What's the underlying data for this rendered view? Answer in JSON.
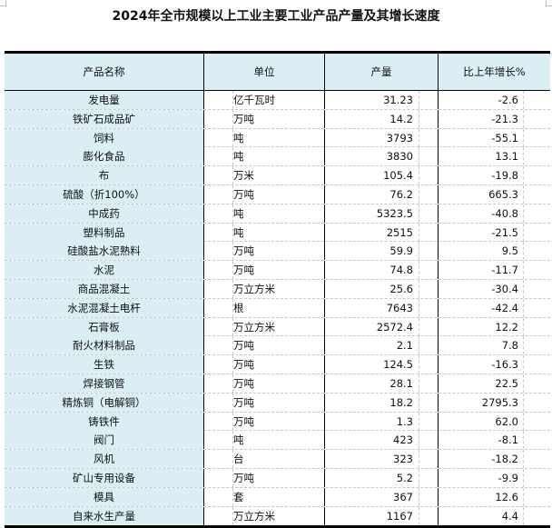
{
  "title": "2024年全市规模以上工业主要工业产品产量及其增长速度",
  "header": {
    "name": "产品名称",
    "unit": "单位",
    "output": "产量",
    "growth": "比上年增长%"
  },
  "rows": [
    {
      "name": "发电量",
      "unit": "亿千瓦时",
      "output": "31.23",
      "growth": "-2.6"
    },
    {
      "name": "铁矿石成品矿",
      "unit": "万吨",
      "output": "14.2",
      "growth": "-21.3"
    },
    {
      "name": "饲料",
      "unit": "吨",
      "output": "3793",
      "growth": "-55.1"
    },
    {
      "name": "膨化食品",
      "unit": "吨",
      "output": "3830",
      "growth": "13.1"
    },
    {
      "name": "布",
      "unit": "万米",
      "output": "105.4",
      "growth": "-19.8"
    },
    {
      "name": "硫酸（折100%）",
      "unit": "万吨",
      "output": "76.2",
      "growth": "665.3"
    },
    {
      "name": "中成药",
      "unit": "吨",
      "output": "5323.5",
      "growth": "-40.8"
    },
    {
      "name": "塑料制品",
      "unit": "吨",
      "output": "2515",
      "growth": "-21.5"
    },
    {
      "name": "硅酸盐水泥熟料",
      "unit": "万吨",
      "output": "59.9",
      "growth": "9.5"
    },
    {
      "name": "水泥",
      "unit": "万吨",
      "output": "74.8",
      "growth": "-11.7"
    },
    {
      "name": "商品混凝土",
      "unit": "万立方米",
      "output": "25.6",
      "growth": "-30.4"
    },
    {
      "name": "水泥混凝土电杆",
      "unit": "根",
      "output": "7643",
      "growth": "-42.4"
    },
    {
      "name": "石膏板",
      "unit": "万立方米",
      "output": "2572.4",
      "growth": "12.2"
    },
    {
      "name": "耐火材料制品",
      "unit": "万吨",
      "output": "2.1",
      "growth": "7.8"
    },
    {
      "name": "生铁",
      "unit": "万吨",
      "output": "124.5",
      "growth": "-16.3"
    },
    {
      "name": "焊接钢管",
      "unit": "万吨",
      "output": "28.1",
      "growth": "22.5"
    },
    {
      "name": "精炼铜（电解铜）",
      "unit": "万吨",
      "output": "18.2",
      "growth": "2795.3"
    },
    {
      "name": "铸铁件",
      "unit": "万吨",
      "output": "1.3",
      "growth": "62.0"
    },
    {
      "name": "阀门",
      "unit": "吨",
      "output": "423",
      "growth": "-8.1"
    },
    {
      "name": "风机",
      "unit": "台",
      "output": "323",
      "growth": "-18.2"
    },
    {
      "name": "矿山专用设备",
      "unit": "万吨",
      "output": "5.2",
      "growth": "-9.9"
    },
    {
      "name": "模具",
      "unit": "套",
      "output": "367",
      "growth": "12.6"
    },
    {
      "name": "自来水生产量",
      "unit": "万立方米",
      "output": "1167",
      "growth": "4.4"
    }
  ],
  "colors": {
    "name_column_bg": "#daeef3",
    "border": "#000000"
  }
}
